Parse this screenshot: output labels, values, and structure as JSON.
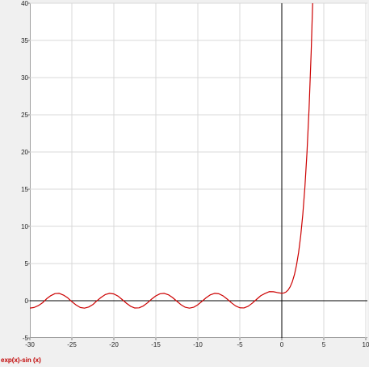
{
  "chart_data": {
    "type": "line",
    "title": "",
    "xlabel": "",
    "ylabel": "",
    "xlim": [
      -30,
      10
    ],
    "ylim": [
      -5,
      40
    ],
    "xticks": [
      -30,
      -25,
      -20,
      -15,
      -10,
      -5,
      0,
      5,
      10
    ],
    "yticks": [
      -5,
      0,
      5,
      10,
      15,
      20,
      25,
      30,
      35,
      40
    ],
    "grid": true,
    "legend": "bottom-left",
    "series": [
      {
        "name": "exp(x)-sin (x)",
        "color": "#cc0000",
        "x": [
          -30,
          -29.5,
          -29,
          -28.5,
          -28,
          -27.5,
          -27,
          -26.5,
          -26,
          -25.5,
          -25,
          -24.5,
          -24,
          -23.5,
          -23,
          -22.5,
          -22,
          -21.5,
          -21,
          -20.5,
          -20,
          -19.5,
          -19,
          -18.5,
          -18,
          -17.5,
          -17,
          -16.5,
          -16,
          -15.5,
          -15,
          -14.5,
          -14,
          -13.5,
          -13,
          -12.5,
          -12,
          -11.5,
          -11,
          -10.5,
          -10,
          -9.5,
          -9,
          -8.5,
          -8,
          -7.5,
          -7,
          -6.5,
          -6,
          -5.5,
          -5,
          -4.5,
          -4,
          -3.5,
          -3,
          -2.5,
          -2,
          -1.5,
          -1,
          -0.5,
          0,
          0.25,
          0.5,
          0.75,
          1,
          1.25,
          1.5,
          1.75,
          2,
          2.25,
          2.5,
          2.75,
          3,
          3.25,
          3.5,
          3.7
        ],
        "y": [
          -0.99,
          -0.91,
          -0.66,
          -0.29,
          0.27,
          0.69,
          0.96,
          0.99,
          0.76,
          0.39,
          -0.13,
          -0.57,
          -0.91,
          -1.0,
          -0.85,
          -0.52,
          0.01,
          0.46,
          0.84,
          0.99,
          0.91,
          0.62,
          0.15,
          -0.34,
          -0.75,
          -0.98,
          -0.96,
          -0.71,
          -0.29,
          0.22,
          0.65,
          0.93,
          0.99,
          0.8,
          0.42,
          -0.07,
          -0.54,
          -0.88,
          -1.0,
          -0.88,
          -0.54,
          -0.08,
          0.41,
          0.8,
          0.99,
          0.94,
          0.66,
          0.22,
          -0.28,
          -0.7,
          -0.95,
          -0.97,
          -0.74,
          -0.32,
          0.19,
          0.68,
          0.97,
          1.22,
          1.21,
          1.09,
          1.0,
          1.04,
          1.17,
          1.43,
          1.88,
          2.54,
          3.48,
          4.77,
          6.48,
          8.7,
          11.58,
          15.26,
          19.94,
          25.9,
          33.47,
          40.97
        ]
      }
    ]
  },
  "colors": {
    "background": "#f0f0f0",
    "plot_area": "#ffffff",
    "grid": "#d9d9d9",
    "axis": "#000000",
    "series": "#cc0000"
  }
}
